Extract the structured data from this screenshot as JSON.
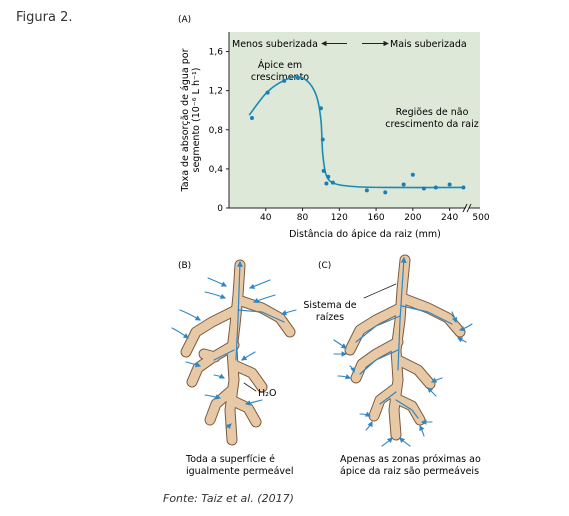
{
  "figure_label": "Figura 2.",
  "source": "Fonte: Taiz et al. (2017)",
  "panel_a": {
    "letter": "(A)",
    "less_suberized": "Menos suberizada",
    "more_suberized": "Mais suberizada",
    "ylabel_line1": "Taxa de absorção de água por",
    "ylabel_line2": "segmento (10⁻⁶ L h⁻¹)",
    "xlabel": "Distância do ápice da raiz (mm)",
    "annotation_growth": [
      "Ápice em",
      "crescimento"
    ],
    "annotation_nongrowth": [
      "Regiões de não",
      "crescimento da raiz"
    ],
    "background_color": "#dde8d8",
    "point_color": "#1a7db5",
    "line_color": "#1a8bb5"
  },
  "chart_data": {
    "type": "scatter",
    "xlabel": "Distância do ápice da raiz (mm)",
    "ylabel": "Taxa de absorção de água por segmento (10⁻⁶ L h⁻¹)",
    "xlim": [
      0,
      260
    ],
    "ylim": [
      0,
      1.8
    ],
    "x_ticks": [
      40,
      80,
      120,
      160,
      200,
      240
    ],
    "x_tick_labels": [
      "40",
      "80",
      "120",
      "160",
      "200",
      "240"
    ],
    "x_break_label": "500",
    "y_ticks": [
      0,
      0.4,
      0.8,
      1.2,
      1.6
    ],
    "y_tick_labels": [
      "0",
      "0,4",
      "0,8",
      "1,2",
      "1,6"
    ],
    "grid": false,
    "points": [
      {
        "x": 25,
        "y": 0.92
      },
      {
        "x": 42,
        "y": 1.18
      },
      {
        "x": 60,
        "y": 1.3
      },
      {
        "x": 75,
        "y": 1.33
      },
      {
        "x": 100,
        "y": 1.02
      },
      {
        "x": 102,
        "y": 0.7
      },
      {
        "x": 103,
        "y": 0.38
      },
      {
        "x": 106,
        "y": 0.25
      },
      {
        "x": 108,
        "y": 0.32
      },
      {
        "x": 113,
        "y": 0.26
      },
      {
        "x": 150,
        "y": 0.18
      },
      {
        "x": 170,
        "y": 0.16
      },
      {
        "x": 190,
        "y": 0.24
      },
      {
        "x": 200,
        "y": 0.34
      },
      {
        "x": 212,
        "y": 0.2
      },
      {
        "x": 225,
        "y": 0.21
      },
      {
        "x": 240,
        "y": 0.24
      },
      {
        "x": 255,
        "y": 0.21
      }
    ],
    "fit_curve": [
      {
        "x": 22,
        "y": 0.95
      },
      {
        "x": 40,
        "y": 1.17
      },
      {
        "x": 55,
        "y": 1.28
      },
      {
        "x": 72,
        "y": 1.34
      },
      {
        "x": 85,
        "y": 1.3
      },
      {
        "x": 95,
        "y": 1.15
      },
      {
        "x": 100,
        "y": 0.9
      },
      {
        "x": 102,
        "y": 0.55
      },
      {
        "x": 106,
        "y": 0.33
      },
      {
        "x": 115,
        "y": 0.25
      },
      {
        "x": 135,
        "y": 0.22
      },
      {
        "x": 170,
        "y": 0.21
      },
      {
        "x": 255,
        "y": 0.21
      }
    ]
  },
  "panel_b": {
    "letter": "(B)",
    "water_label": "H₂O",
    "caption_line1": "Toda a superfície é",
    "caption_line2": "igualmente permeável"
  },
  "panel_c": {
    "letter": "(C)",
    "system_label_line1": "Sistema de",
    "system_label_line2": "raízes",
    "caption_line1": "Apenas as zonas próximas ao",
    "caption_line2": "ápice da raiz são permeáveis"
  }
}
